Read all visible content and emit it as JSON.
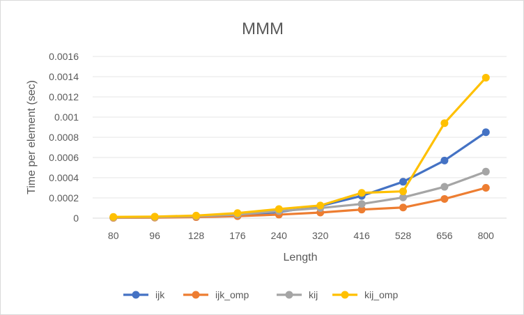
{
  "chart_data": {
    "type": "line",
    "title": "MMM",
    "xlabel": "Length",
    "ylabel": "Time per element (sec)",
    "categories": [
      "80",
      "96",
      "128",
      "176",
      "240",
      "320",
      "416",
      "528",
      "656",
      "800"
    ],
    "ylim": [
      0,
      0.0016
    ],
    "yticks": [
      "0",
      "0.0002",
      "0.0004",
      "0.0006",
      "0.0008",
      "0.001",
      "0.0012",
      "0.0014",
      "0.0016"
    ],
    "grid": true,
    "legend_position": "bottom",
    "series": [
      {
        "name": "ijk",
        "color": "#4472C4",
        "values": [
          5e-06,
          8e-06,
          1.5e-05,
          3e-05,
          6e-05,
          0.00012,
          0.00022,
          0.00036,
          0.00057,
          0.00085
        ]
      },
      {
        "name": "ijk_omp",
        "color": "#ED7D31",
        "values": [
          3e-06,
          5e-06,
          1e-05,
          2e-05,
          3.5e-05,
          5.5e-05,
          8.5e-05,
          0.000105,
          0.00019,
          0.0003
        ]
      },
      {
        "name": "kij",
        "color": "#A5A5A5",
        "values": [
          7e-06,
          1e-05,
          1.8e-05,
          3.5e-05,
          7e-05,
          0.0001,
          0.00014,
          0.000205,
          0.00031,
          0.00046
        ]
      },
      {
        "name": "kij_omp",
        "color": "#FFC000",
        "values": [
          1.2e-05,
          1.5e-05,
          2.5e-05,
          5e-05,
          9e-05,
          0.000125,
          0.00025,
          0.000265,
          0.00094,
          0.00139
        ]
      }
    ]
  }
}
